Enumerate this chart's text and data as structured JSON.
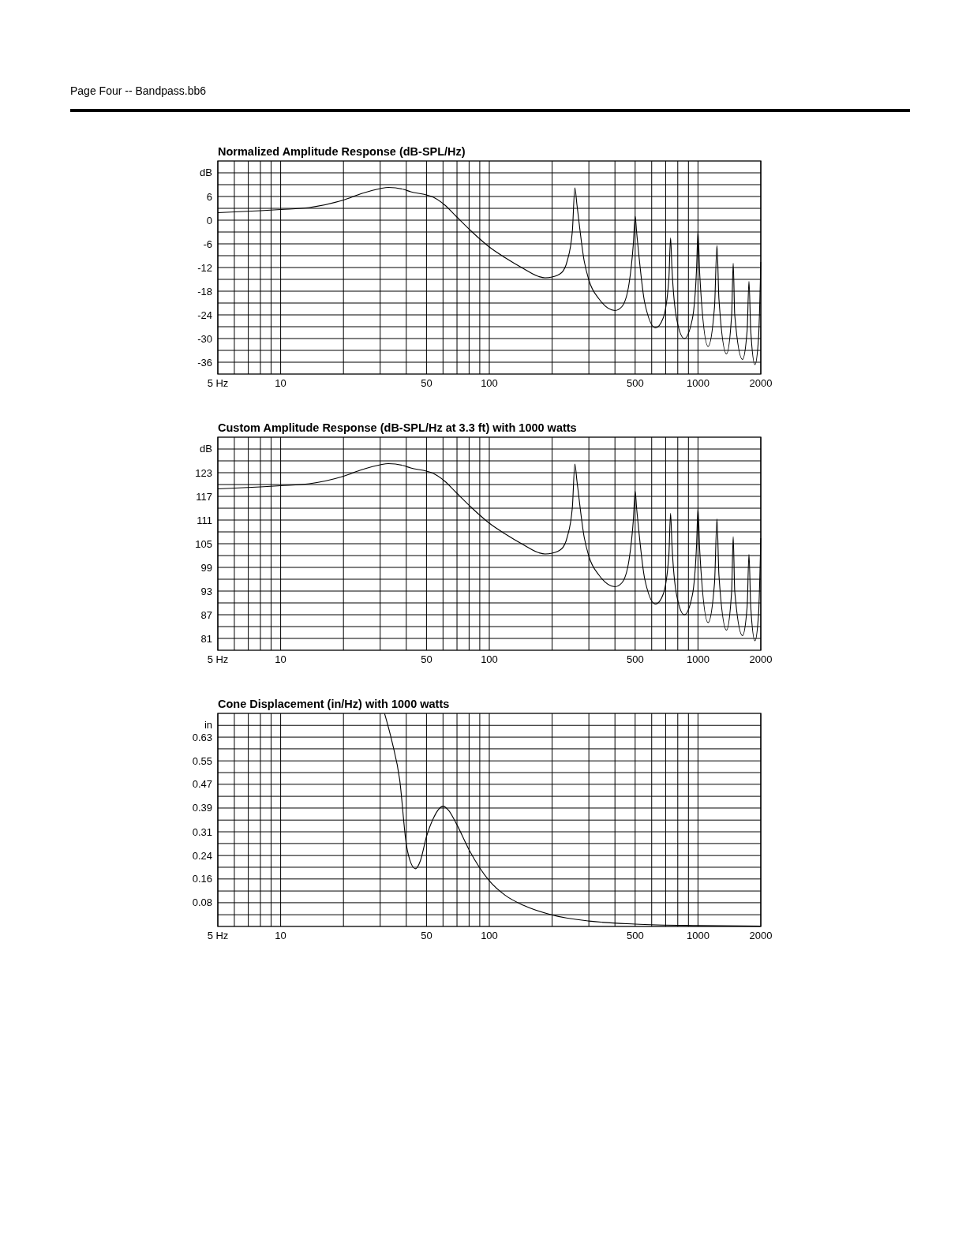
{
  "chart_data": [
    {
      "type": "line",
      "title": "Normalized Amplitude Response (dB-SPL/Hz)",
      "ylabel": "dB",
      "annotations": [
        "Page Four -- Bandpass.bb6"
      ],
      "log": "x",
      "grid": true,
      "xlim": [
        5,
        2000
      ],
      "xticks": [
        {
          "value": 5,
          "label": "5 Hz"
        },
        {
          "value": 6,
          "label": null
        },
        {
          "value": 7,
          "label": null
        },
        {
          "value": 8,
          "label": null
        },
        {
          "value": 9,
          "label": null
        },
        10,
        {
          "value": 20,
          "label": null
        },
        {
          "value": 30,
          "label": null
        },
        {
          "value": 40,
          "label": null
        },
        50,
        {
          "value": 60,
          "label": null
        },
        {
          "value": 70,
          "label": null
        },
        {
          "value": 80,
          "label": null
        },
        {
          "value": 90,
          "label": null
        },
        100,
        {
          "value": 200,
          "label": null
        },
        {
          "value": 300,
          "label": null
        },
        {
          "value": 400,
          "label": null
        },
        500,
        {
          "value": 600,
          "label": null
        },
        {
          "value": 700,
          "label": null
        },
        {
          "value": 800,
          "label": null
        },
        {
          "value": 900,
          "label": null
        },
        1000,
        2000
      ],
      "ylim": [
        -39,
        15
      ],
      "yticks": [
        -36,
        {
          "value": -33,
          "label": null
        },
        -30,
        {
          "value": -27,
          "label": null
        },
        -24,
        {
          "value": -21,
          "label": null
        },
        -18,
        {
          "value": -15,
          "label": null
        },
        -12,
        {
          "value": -9,
          "label": null
        },
        -6,
        {
          "value": -3,
          "label": null
        },
        0,
        {
          "value": 3,
          "label": null
        },
        6,
        {
          "value": 9,
          "label": null
        },
        {
          "value": 12,
          "label": null
        }
      ],
      "x": [
        5,
        8,
        10,
        13.7,
        20,
        24.6,
        30,
        32.8,
        38.8,
        42,
        50,
        54,
        61,
        69,
        82,
        100,
        119,
        146,
        173,
        185,
        200,
        222,
        236,
        250,
        257,
        263,
        285,
        300,
        336,
        400,
        432,
        467,
        490,
        500,
        508,
        518,
        556,
        626,
        681,
        725,
        739,
        750,
        790,
        860,
        940,
        985,
        1000,
        1020,
        1118,
        1200,
        1233,
        1260,
        1370,
        1450,
        1475,
        1500,
        1634,
        1720,
        1755,
        1790,
        1875,
        1950,
        2000
      ],
      "series": [
        {
          "color": "#000000",
          "values": [
            1.9,
            2.4,
            2.7,
            3.2,
            5.1,
            6.8,
            8.0,
            8.3,
            7.8,
            7.2,
            6.4,
            5.8,
            3.9,
            1.1,
            -2.8,
            -6.8,
            -9.5,
            -12.3,
            -14.3,
            -14.6,
            -14.4,
            -13.3,
            -10.4,
            -2.8,
            8.2,
            3.9,
            -10.4,
            -15.2,
            -20,
            -22.9,
            -21.9,
            -16.2,
            -6,
            1.0,
            -3,
            -7.6,
            -21,
            -27.3,
            -24.8,
            -15,
            -4.5,
            -12,
            -25,
            -30,
            -25,
            -12,
            -2.8,
            -14,
            -32,
            -22,
            -6.4,
            -20,
            -33.9,
            -24,
            -10.9,
            -24,
            -35.3,
            -28,
            -15.5,
            -28,
            -36.6,
            -30,
            -10.6
          ]
        }
      ]
    },
    {
      "type": "line",
      "title": "Custom Amplitude Response (dB-SPL/Hz at 3.3 ft) with 1000 watts",
      "ylabel": "dB",
      "log": "x",
      "grid": true,
      "xlim": [
        5,
        2000
      ],
      "xticks": [
        {
          "value": 5,
          "label": "5 Hz"
        },
        {
          "value": 6,
          "label": null
        },
        {
          "value": 7,
          "label": null
        },
        {
          "value": 8,
          "label": null
        },
        {
          "value": 9,
          "label": null
        },
        10,
        {
          "value": 20,
          "label": null
        },
        {
          "value": 30,
          "label": null
        },
        {
          "value": 40,
          "label": null
        },
        50,
        {
          "value": 60,
          "label": null
        },
        {
          "value": 70,
          "label": null
        },
        {
          "value": 80,
          "label": null
        },
        {
          "value": 90,
          "label": null
        },
        100,
        {
          "value": 200,
          "label": null
        },
        {
          "value": 300,
          "label": null
        },
        {
          "value": 400,
          "label": null
        },
        500,
        {
          "value": 600,
          "label": null
        },
        {
          "value": 700,
          "label": null
        },
        {
          "value": 800,
          "label": null
        },
        {
          "value": 900,
          "label": null
        },
        1000,
        2000
      ],
      "ylim": [
        78,
        132
      ],
      "yticks": [
        81,
        {
          "value": 84,
          "label": null
        },
        87,
        {
          "value": 90,
          "label": null
        },
        93,
        {
          "value": 96,
          "label": null
        },
        99,
        {
          "value": 102,
          "label": null
        },
        105,
        {
          "value": 108,
          "label": null
        },
        111,
        {
          "value": 114,
          "label": null
        },
        117,
        {
          "value": 120,
          "label": null
        },
        123,
        {
          "value": 126,
          "label": null
        },
        {
          "value": 129,
          "label": null
        }
      ],
      "x": [
        5,
        8,
        10,
        13.7,
        20,
        24.6,
        30,
        32.8,
        38.8,
        42,
        50,
        54,
        61,
        69,
        82,
        100,
        119,
        146,
        173,
        185,
        200,
        222,
        236,
        250,
        257,
        263,
        285,
        300,
        336,
        400,
        432,
        467,
        490,
        500,
        508,
        518,
        556,
        626,
        681,
        725,
        739,
        750,
        790,
        860,
        940,
        985,
        1000,
        1020,
        1118,
        1200,
        1233,
        1260,
        1370,
        1450,
        1475,
        1500,
        1634,
        1720,
        1755,
        1790,
        1875,
        1950,
        2000
      ],
      "series": [
        {
          "color": "#000000",
          "values": [
            118.9,
            119.4,
            119.7,
            120.2,
            122.1,
            123.8,
            125.0,
            125.3,
            124.8,
            124.2,
            123.4,
            122.8,
            120.9,
            118.1,
            114.2,
            110.2,
            107.5,
            104.7,
            102.7,
            102.4,
            102.6,
            103.7,
            106.6,
            114.2,
            125.2,
            120.9,
            106.6,
            101.8,
            97,
            94.1,
            95.1,
            100.8,
            111,
            118.3,
            114,
            109.4,
            96,
            89.7,
            92.2,
            102,
            112.7,
            105,
            92,
            87,
            92,
            105,
            114,
            103,
            85,
            95,
            111.3,
            97,
            83.1,
            93,
            106.8,
            93,
            81.7,
            89,
            102.3,
            89,
            80.4,
            87,
            106.4
          ]
        }
      ]
    },
    {
      "type": "line",
      "title": "Cone Displacement (in/Hz) with 1000 watts",
      "ylabel": "in",
      "log": "x",
      "grid": true,
      "xlim": [
        5,
        2000
      ],
      "xticks": [
        {
          "value": 5,
          "label": "5 Hz"
        },
        {
          "value": 6,
          "label": null
        },
        {
          "value": 7,
          "label": null
        },
        {
          "value": 8,
          "label": null
        },
        {
          "value": 9,
          "label": null
        },
        10,
        {
          "value": 20,
          "label": null
        },
        {
          "value": 30,
          "label": null
        },
        {
          "value": 40,
          "label": null
        },
        50,
        {
          "value": 60,
          "label": null
        },
        {
          "value": 70,
          "label": null
        },
        {
          "value": 80,
          "label": null
        },
        {
          "value": 90,
          "label": null
        },
        100,
        {
          "value": 200,
          "label": null
        },
        {
          "value": 300,
          "label": null
        },
        {
          "value": 400,
          "label": null
        },
        500,
        {
          "value": 600,
          "label": null
        },
        {
          "value": 700,
          "label": null
        },
        {
          "value": 800,
          "label": null
        },
        {
          "value": 900,
          "label": null
        },
        1000,
        2000
      ],
      "ylim": [
        0,
        0.709
      ],
      "yticks": [
        {
          "value": 0.039,
          "label": null
        },
        {
          "value": 0.079,
          "label": "0.08"
        },
        {
          "value": 0.118,
          "label": null
        },
        {
          "value": 0.158,
          "label": "0.16"
        },
        {
          "value": 0.197,
          "label": null
        },
        {
          "value": 0.236,
          "label": "0.24"
        },
        {
          "value": 0.276,
          "label": null
        },
        {
          "value": 0.315,
          "label": "0.31"
        },
        {
          "value": 0.354,
          "label": null
        },
        {
          "value": 0.394,
          "label": "0.39"
        },
        {
          "value": 0.433,
          "label": null
        },
        {
          "value": 0.473,
          "label": "0.47"
        },
        {
          "value": 0.512,
          "label": null
        },
        {
          "value": 0.551,
          "label": "0.55"
        },
        {
          "value": 0.591,
          "label": null
        },
        0.63,
        {
          "value": 0.669,
          "label": null
        }
      ],
      "x": [
        31.5,
        34.2,
        37.2,
        40,
        42.1,
        44.3,
        46.7,
        50,
        54.1,
        60,
        63.7,
        69.4,
        80,
        100,
        119,
        146,
        200,
        300,
        500,
        1000,
        2000
      ],
      "series": [
        {
          "color": "#000000",
          "values": [
            0.708,
            0.614,
            0.488,
            0.274,
            0.211,
            0.192,
            0.218,
            0.299,
            0.362,
            0.4,
            0.387,
            0.343,
            0.255,
            0.152,
            0.104,
            0.07,
            0.038,
            0.018,
            0.008,
            0.003,
            0.001
          ]
        }
      ]
    }
  ]
}
